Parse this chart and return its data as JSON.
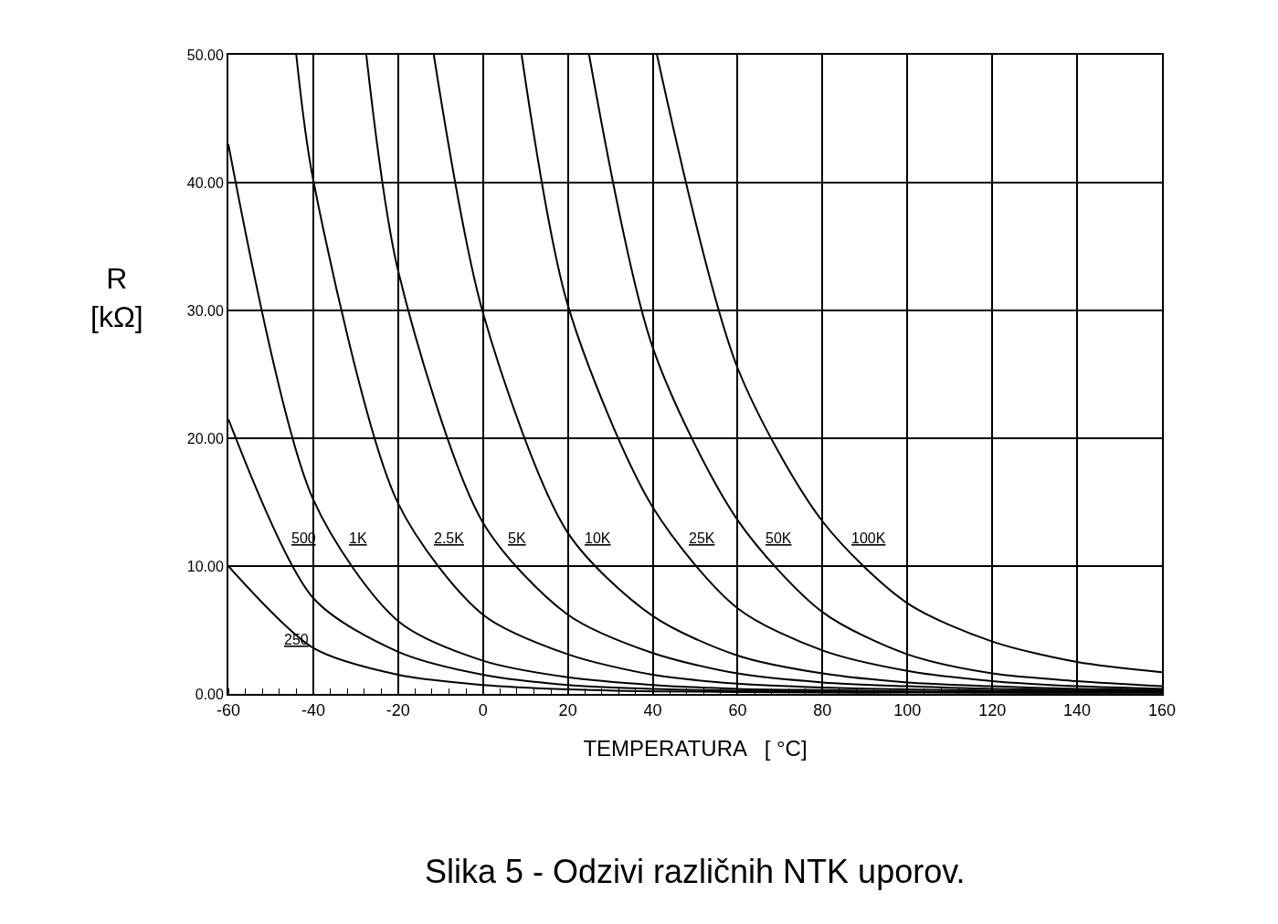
{
  "chart_data": {
    "type": "line",
    "xlabel": "TEMPERATURA   [ °C]",
    "ylabel": "R\n[kΩ]",
    "annotations": [
      "Slika 5 - Odzivi različnih NTK uporov."
    ],
    "xlim": [
      -60,
      160
    ],
    "xticks": [
      -60,
      -40,
      -20,
      0,
      20,
      40,
      60,
      80,
      100,
      120,
      140,
      160
    ],
    "ylim": [
      0,
      50
    ],
    "yticks": [
      {
        "value": 0,
        "label": "0.00"
      },
      {
        "value": 10,
        "label": "10.00"
      },
      {
        "value": 20,
        "label": "20.00"
      },
      {
        "value": 30,
        "label": "30.00"
      },
      {
        "value": 40,
        "label": "40.00"
      },
      {
        "value": 50,
        "label": "50.00"
      }
    ],
    "grid": true,
    "legend": false,
    "marker": "none",
    "line_style": "solid",
    "series": [
      {
        "name": "250",
        "color": "#000000",
        "x": [
          -60,
          -40,
          -20,
          0,
          20,
          40,
          60,
          80,
          100,
          120,
          140,
          160
        ],
        "values": [
          10,
          3.6,
          1.5,
          0.7,
          0.35,
          0.2,
          0.15,
          0.1,
          0.1,
          0.1,
          0.1,
          0.1
        ]
      },
      {
        "name": "500",
        "color": "#000000",
        "x": [
          -60,
          -40,
          -20,
          0,
          20,
          40,
          60,
          80,
          100,
          120,
          140,
          160
        ],
        "values": [
          21.5,
          7.5,
          3.3,
          1.5,
          0.7,
          0.4,
          0.25,
          0.2,
          0.15,
          0.1,
          0.1,
          0.1
        ]
      },
      {
        "name": "1K",
        "color": "#000000",
        "x": [
          -60,
          -40,
          -20,
          0,
          20,
          40,
          60,
          80,
          100,
          120,
          140,
          160
        ],
        "values": [
          43,
          15.2,
          5.7,
          2.6,
          1.3,
          0.7,
          0.4,
          0.3,
          0.2,
          0.15,
          0.1,
          0.1
        ]
      },
      {
        "name": "2.5K",
        "color": "#000000",
        "x": [
          -44,
          -40,
          -20,
          0,
          20,
          40,
          60,
          80,
          100,
          120,
          140,
          160
        ],
        "values": [
          50,
          40.2,
          14.9,
          6.2,
          3.1,
          1.5,
          0.8,
          0.5,
          0.35,
          0.25,
          0.2,
          0.15
        ]
      },
      {
        "name": "5K",
        "color": "#000000",
        "x": [
          -27.5,
          -20,
          0,
          20,
          40,
          60,
          80,
          100,
          120,
          140,
          160
        ],
        "values": [
          50,
          33.1,
          13.4,
          6.2,
          3.2,
          1.6,
          0.9,
          0.6,
          0.4,
          0.3,
          0.2
        ]
      },
      {
        "name": "10K",
        "color": "#000000",
        "x": [
          -11.6,
          0,
          20,
          40,
          60,
          80,
          100,
          120,
          140,
          160
        ],
        "values": [
          50,
          29.8,
          12.6,
          6.1,
          3,
          1.6,
          0.9,
          0.6,
          0.4,
          0.3
        ]
      },
      {
        "name": "25K",
        "color": "#000000",
        "x": [
          9.1,
          20,
          40,
          60,
          80,
          100,
          120,
          140,
          160
        ],
        "values": [
          50,
          30.4,
          14.6,
          6.7,
          3.4,
          1.8,
          1,
          0.6,
          0.4
        ]
      },
      {
        "name": "50K",
        "color": "#000000",
        "x": [
          25,
          40,
          60,
          80,
          100,
          120,
          140,
          160
        ],
        "values": [
          50,
          27.1,
          13.6,
          6.4,
          3.1,
          1.6,
          1,
          0.6
        ]
      },
      {
        "name": "100K",
        "color": "#000000",
        "x": [
          41,
          60,
          80,
          100,
          120,
          140,
          160
        ],
        "values": [
          50,
          25.5,
          13.5,
          7.1,
          4.1,
          2.5,
          1.7
        ]
      }
    ]
  }
}
